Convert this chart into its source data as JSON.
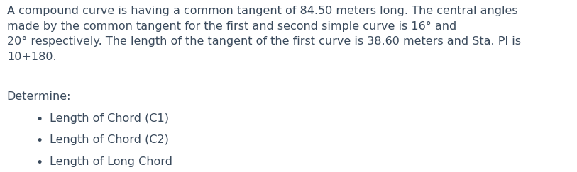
{
  "background_color": "#ffffff",
  "text_color": "#3a4a5c",
  "font_family": "sans-serif",
  "paragraph": "A compound curve is having a common tangent of 84.50 meters long. The central angles\nmade by the common tangent for the first and second simple curve is 16° and\n20° respectively. The length of the tangent of the first curve is 38.60 meters and Sta. PI is\n10+180.",
  "determine_label": "Determine:",
  "bullet_items": [
    "Length of Chord (C1)",
    "Length of Chord (C2)",
    "Length of Long Chord"
  ],
  "paragraph_fontsize": 11.5,
  "determine_fontsize": 11.5,
  "bullet_fontsize": 11.5,
  "figsize": [
    8.13,
    2.43
  ],
  "dpi": 100
}
